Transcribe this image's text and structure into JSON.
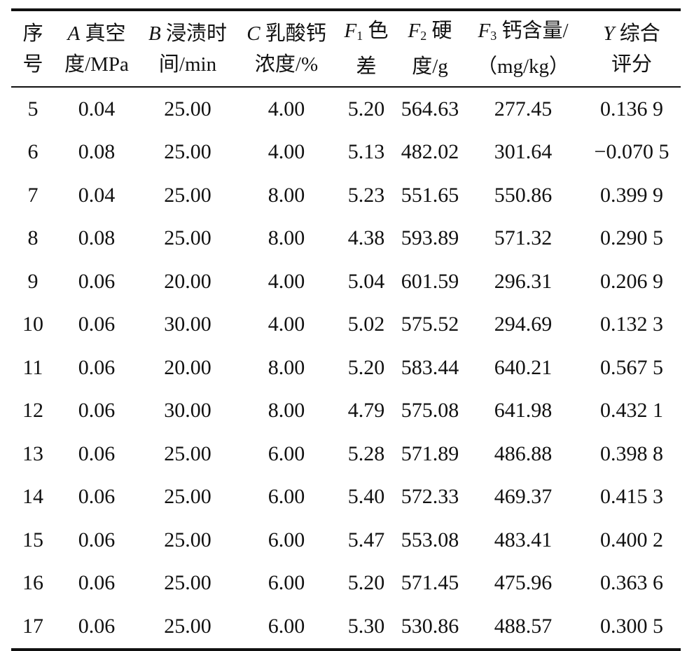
{
  "table": {
    "headers": [
      {
        "var": "",
        "sub": "",
        "line1": "序",
        "line2": "号"
      },
      {
        "var": "A",
        "sub": "",
        "line1": " 真空",
        "line2": "度/MPa"
      },
      {
        "var": "B",
        "sub": "",
        "line1": " 浸渍时",
        "line2": "间/min"
      },
      {
        "var": "C",
        "sub": "",
        "line1": " 乳酸钙",
        "line2": "浓度/%"
      },
      {
        "var": "F",
        "sub": "1",
        "line1": " 色",
        "line2": "差"
      },
      {
        "var": "F",
        "sub": "2",
        "line1": " 硬",
        "line2": "度/g"
      },
      {
        "var": "F",
        "sub": "3",
        "line1": " 钙含量/",
        "line2": "（mg/kg）"
      },
      {
        "var": "Y",
        "sub": "",
        "line1": " 综合",
        "line2": "评分"
      }
    ],
    "rows": [
      [
        "5",
        "0.04",
        "25.00",
        "4.00",
        "5.20",
        "564.63",
        "277.45",
        "0.136 9"
      ],
      [
        "6",
        "0.08",
        "25.00",
        "4.00",
        "5.13",
        "482.02",
        "301.64",
        "−0.070 5"
      ],
      [
        "7",
        "0.04",
        "25.00",
        "8.00",
        "5.23",
        "551.65",
        "550.86",
        "0.399 9"
      ],
      [
        "8",
        "0.08",
        "25.00",
        "8.00",
        "4.38",
        "593.89",
        "571.32",
        "0.290 5"
      ],
      [
        "9",
        "0.06",
        "20.00",
        "4.00",
        "5.04",
        "601.59",
        "296.31",
        "0.206 9"
      ],
      [
        "10",
        "0.06",
        "30.00",
        "4.00",
        "5.02",
        "575.52",
        "294.69",
        "0.132 3"
      ],
      [
        "11",
        "0.06",
        "20.00",
        "8.00",
        "5.20",
        "583.44",
        "640.21",
        "0.567 5"
      ],
      [
        "12",
        "0.06",
        "30.00",
        "8.00",
        "4.79",
        "575.08",
        "641.98",
        "0.432 1"
      ],
      [
        "13",
        "0.06",
        "25.00",
        "6.00",
        "5.28",
        "571.89",
        "486.88",
        "0.398 8"
      ],
      [
        "14",
        "0.06",
        "25.00",
        "6.00",
        "5.40",
        "572.33",
        "469.37",
        "0.415 3"
      ],
      [
        "15",
        "0.06",
        "25.00",
        "6.00",
        "5.47",
        "553.08",
        "483.41",
        "0.400 2"
      ],
      [
        "16",
        "0.06",
        "25.00",
        "6.00",
        "5.20",
        "571.45",
        "475.96",
        "0.363 6"
      ],
      [
        "17",
        "0.06",
        "25.00",
        "6.00",
        "5.30",
        "530.86",
        "488.57",
        "0.300 5"
      ]
    ]
  }
}
